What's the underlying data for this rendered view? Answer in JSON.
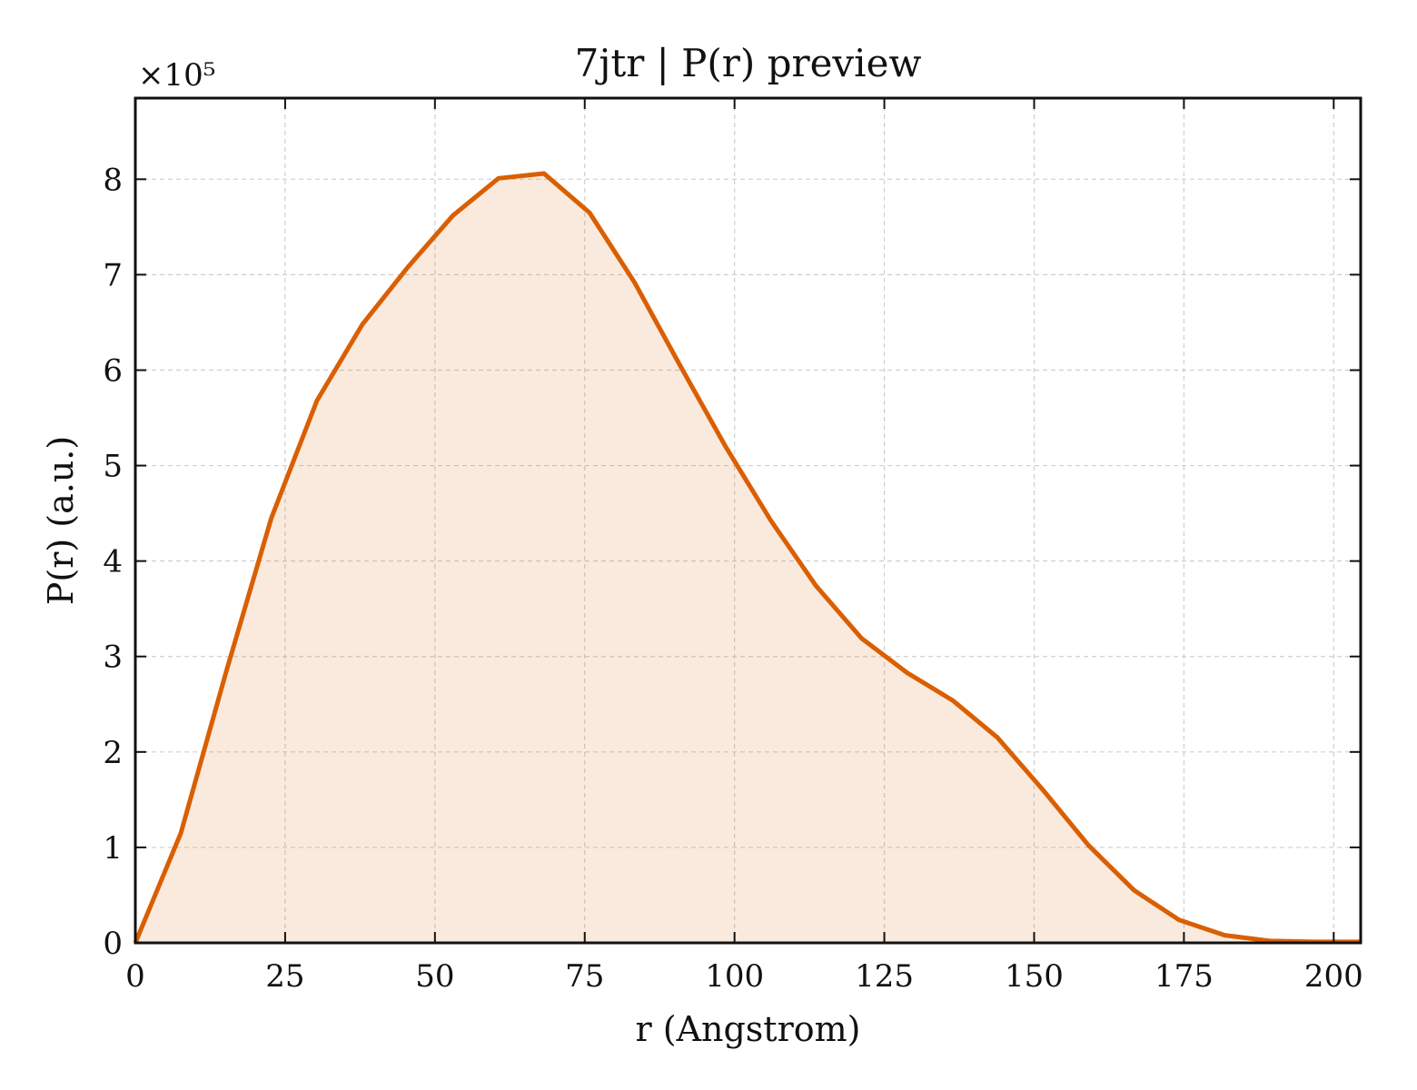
{
  "chart_data": {
    "type": "area",
    "title": "7jtr | P(r) preview",
    "xlabel": "r (Angstrom)",
    "ylabel": "P(r) (a.u.)",
    "y_offset_label": "×10⁵",
    "y_scale_factor": 100000,
    "xlim": [
      0,
      204.5
    ],
    "ylim": [
      0,
      8.85
    ],
    "xticks": [
      0,
      25,
      50,
      75,
      100,
      125,
      150,
      175,
      200
    ],
    "yticks": [
      0,
      1,
      2,
      3,
      4,
      5,
      6,
      7,
      8
    ],
    "grid": true,
    "colors": {
      "line": "#d95f02",
      "fill": "#d95f02",
      "fill_opacity": 0.13
    },
    "series": [
      {
        "x": [
          0,
          7.6,
          15.2,
          22.7,
          30.3,
          37.9,
          45.5,
          53.0,
          60.6,
          68.2,
          75.8,
          83.3,
          90.9,
          98.5,
          106.1,
          113.6,
          121.2,
          128.8,
          136.4,
          143.9,
          151.5,
          159.1,
          166.7,
          174.2,
          181.8,
          189.4,
          197.0,
          204.5
        ],
        "y": [
          0,
          1.15,
          2.85,
          4.45,
          5.68,
          6.48,
          7.08,
          7.62,
          8.01,
          8.06,
          7.65,
          6.92,
          6.05,
          5.2,
          4.42,
          3.74,
          3.19,
          2.83,
          2.54,
          2.15,
          1.6,
          1.02,
          0.55,
          0.24,
          0.08,
          0.02,
          0.01,
          0.01
        ]
      }
    ]
  }
}
